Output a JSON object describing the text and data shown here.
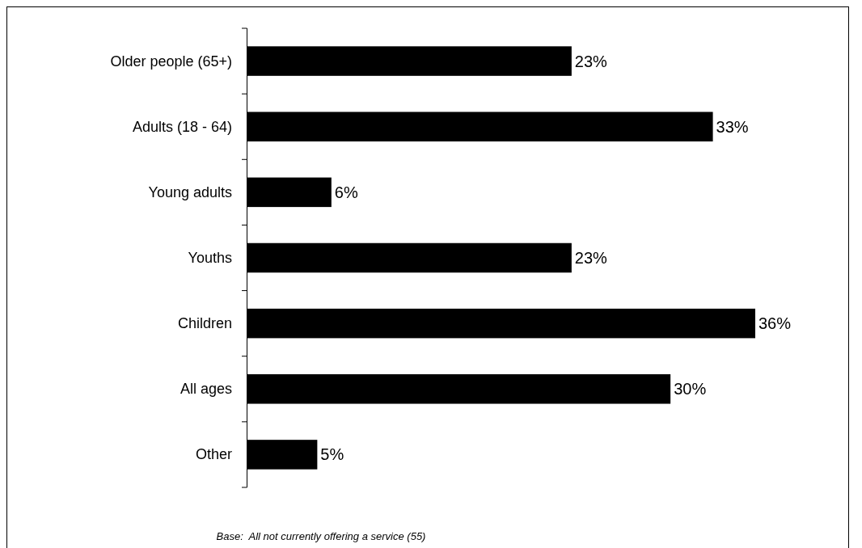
{
  "chart_data": {
    "type": "bar",
    "orientation": "horizontal",
    "categories": [
      "Older people (65+)",
      "Adults (18 - 64)",
      "Young adults",
      "Youths",
      "Children",
      "All ages",
      "Other"
    ],
    "values": [
      23,
      33,
      6,
      23,
      36,
      30,
      5
    ],
    "value_labels": [
      "23%",
      "33%",
      "6%",
      "23%",
      "36%",
      "30%",
      "5%"
    ],
    "color": "#000000",
    "annotations": [
      "Base:  All not currently offering a service (55)"
    ]
  }
}
